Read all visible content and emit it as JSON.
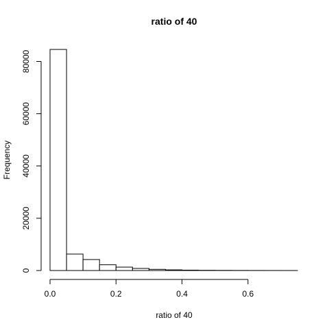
{
  "chart_data": {
    "type": "bar",
    "title": "ratio of 40",
    "xlabel": "ratio of 40",
    "ylabel": "Frequency",
    "bin_width": 0.05,
    "bin_starts": [
      0.0,
      0.05,
      0.1,
      0.15,
      0.2,
      0.25,
      0.3,
      0.35,
      0.4,
      0.45,
      0.5,
      0.55,
      0.6,
      0.65,
      0.7
    ],
    "values": [
      84600,
      6300,
      4200,
      2200,
      1300,
      800,
      450,
      250,
      150,
      90,
      60,
      40,
      25,
      15,
      10
    ],
    "xlim": [
      0,
      0.75
    ],
    "ylim": [
      0,
      84600
    ],
    "xticks": [
      0.0,
      0.2,
      0.4,
      0.6
    ],
    "xtick_labels": [
      "0.0",
      "0.2",
      "0.4",
      "0.6"
    ],
    "yticks": [
      0,
      20000,
      40000,
      60000,
      80000
    ],
    "ytick_labels": [
      "0",
      "20000",
      "40000",
      "60000",
      "80000"
    ],
    "grid": false,
    "bar_fill": "#ffffff",
    "bar_stroke": "#000000"
  }
}
